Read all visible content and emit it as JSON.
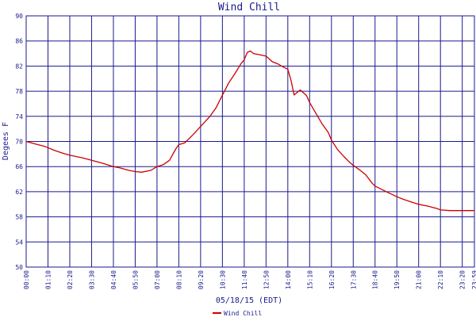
{
  "chart_data": {
    "type": "line",
    "title": "Wind Chill",
    "xlabel": "05/18/15 (EDT)",
    "ylabel": "Degees F",
    "ylim": [
      50,
      90
    ],
    "yticks": [
      50,
      54,
      58,
      62,
      66,
      70,
      74,
      78,
      82,
      86,
      90
    ],
    "xticks": [
      "00:00",
      "01:10",
      "02:20",
      "03:30",
      "04:40",
      "05:50",
      "07:00",
      "08:10",
      "09:20",
      "10:30",
      "11:40",
      "12:50",
      "14:00",
      "15:10",
      "16:20",
      "17:30",
      "18:40",
      "19:50",
      "21:00",
      "22:10",
      "23:20",
      "23:59"
    ],
    "grid": true,
    "legend": "bottom",
    "colors": {
      "line": "#cc0000",
      "grid": "#1a1a8c",
      "text": "#1a1a8c"
    },
    "series": [
      {
        "name": "Wind Chill",
        "x": [
          "00:00",
          "00:30",
          "01:00",
          "01:30",
          "02:00",
          "02:20",
          "03:00",
          "03:30",
          "04:00",
          "04:40",
          "05:00",
          "05:30",
          "05:50",
          "06:10",
          "06:40",
          "07:00",
          "07:20",
          "07:40",
          "08:00",
          "08:10",
          "08:30",
          "09:00",
          "09:20",
          "09:50",
          "10:10",
          "10:30",
          "10:50",
          "11:10",
          "11:30",
          "11:40",
          "11:50",
          "12:00",
          "12:10",
          "12:30",
          "12:50",
          "13:10",
          "13:30",
          "13:40",
          "14:00",
          "14:10",
          "14:20",
          "14:40",
          "15:00",
          "15:10",
          "15:30",
          "15:50",
          "16:10",
          "16:20",
          "16:40",
          "17:00",
          "17:20",
          "17:30",
          "17:50",
          "18:10",
          "18:30",
          "18:40",
          "19:00",
          "19:20",
          "19:50",
          "20:10",
          "20:40",
          "21:00",
          "21:30",
          "22:00",
          "22:10",
          "22:40",
          "23:20",
          "23:59"
        ],
        "values": [
          70,
          69.6,
          69.2,
          68.6,
          68.1,
          67.8,
          67.4,
          67.0,
          66.6,
          66.0,
          65.8,
          65.4,
          65.2,
          65.1,
          65.4,
          66.0,
          66.3,
          67.0,
          68.8,
          69.5,
          69.8,
          71.3,
          72.4,
          74.0,
          75.4,
          77.4,
          79.3,
          80.8,
          82.4,
          83.0,
          84.2,
          84.4,
          84.0,
          83.8,
          83.6,
          82.7,
          82.3,
          82.0,
          81.5,
          79.8,
          77.4,
          78.2,
          77.3,
          76.2,
          74.5,
          72.8,
          71.4,
          70.2,
          68.7,
          67.6,
          66.6,
          66.2,
          65.5,
          64.7,
          63.4,
          62.9,
          62.4,
          61.9,
          61.2,
          60.8,
          60.3,
          60.0,
          59.7,
          59.3,
          59.1,
          59.0,
          59.0,
          59.0
        ]
      }
    ]
  }
}
